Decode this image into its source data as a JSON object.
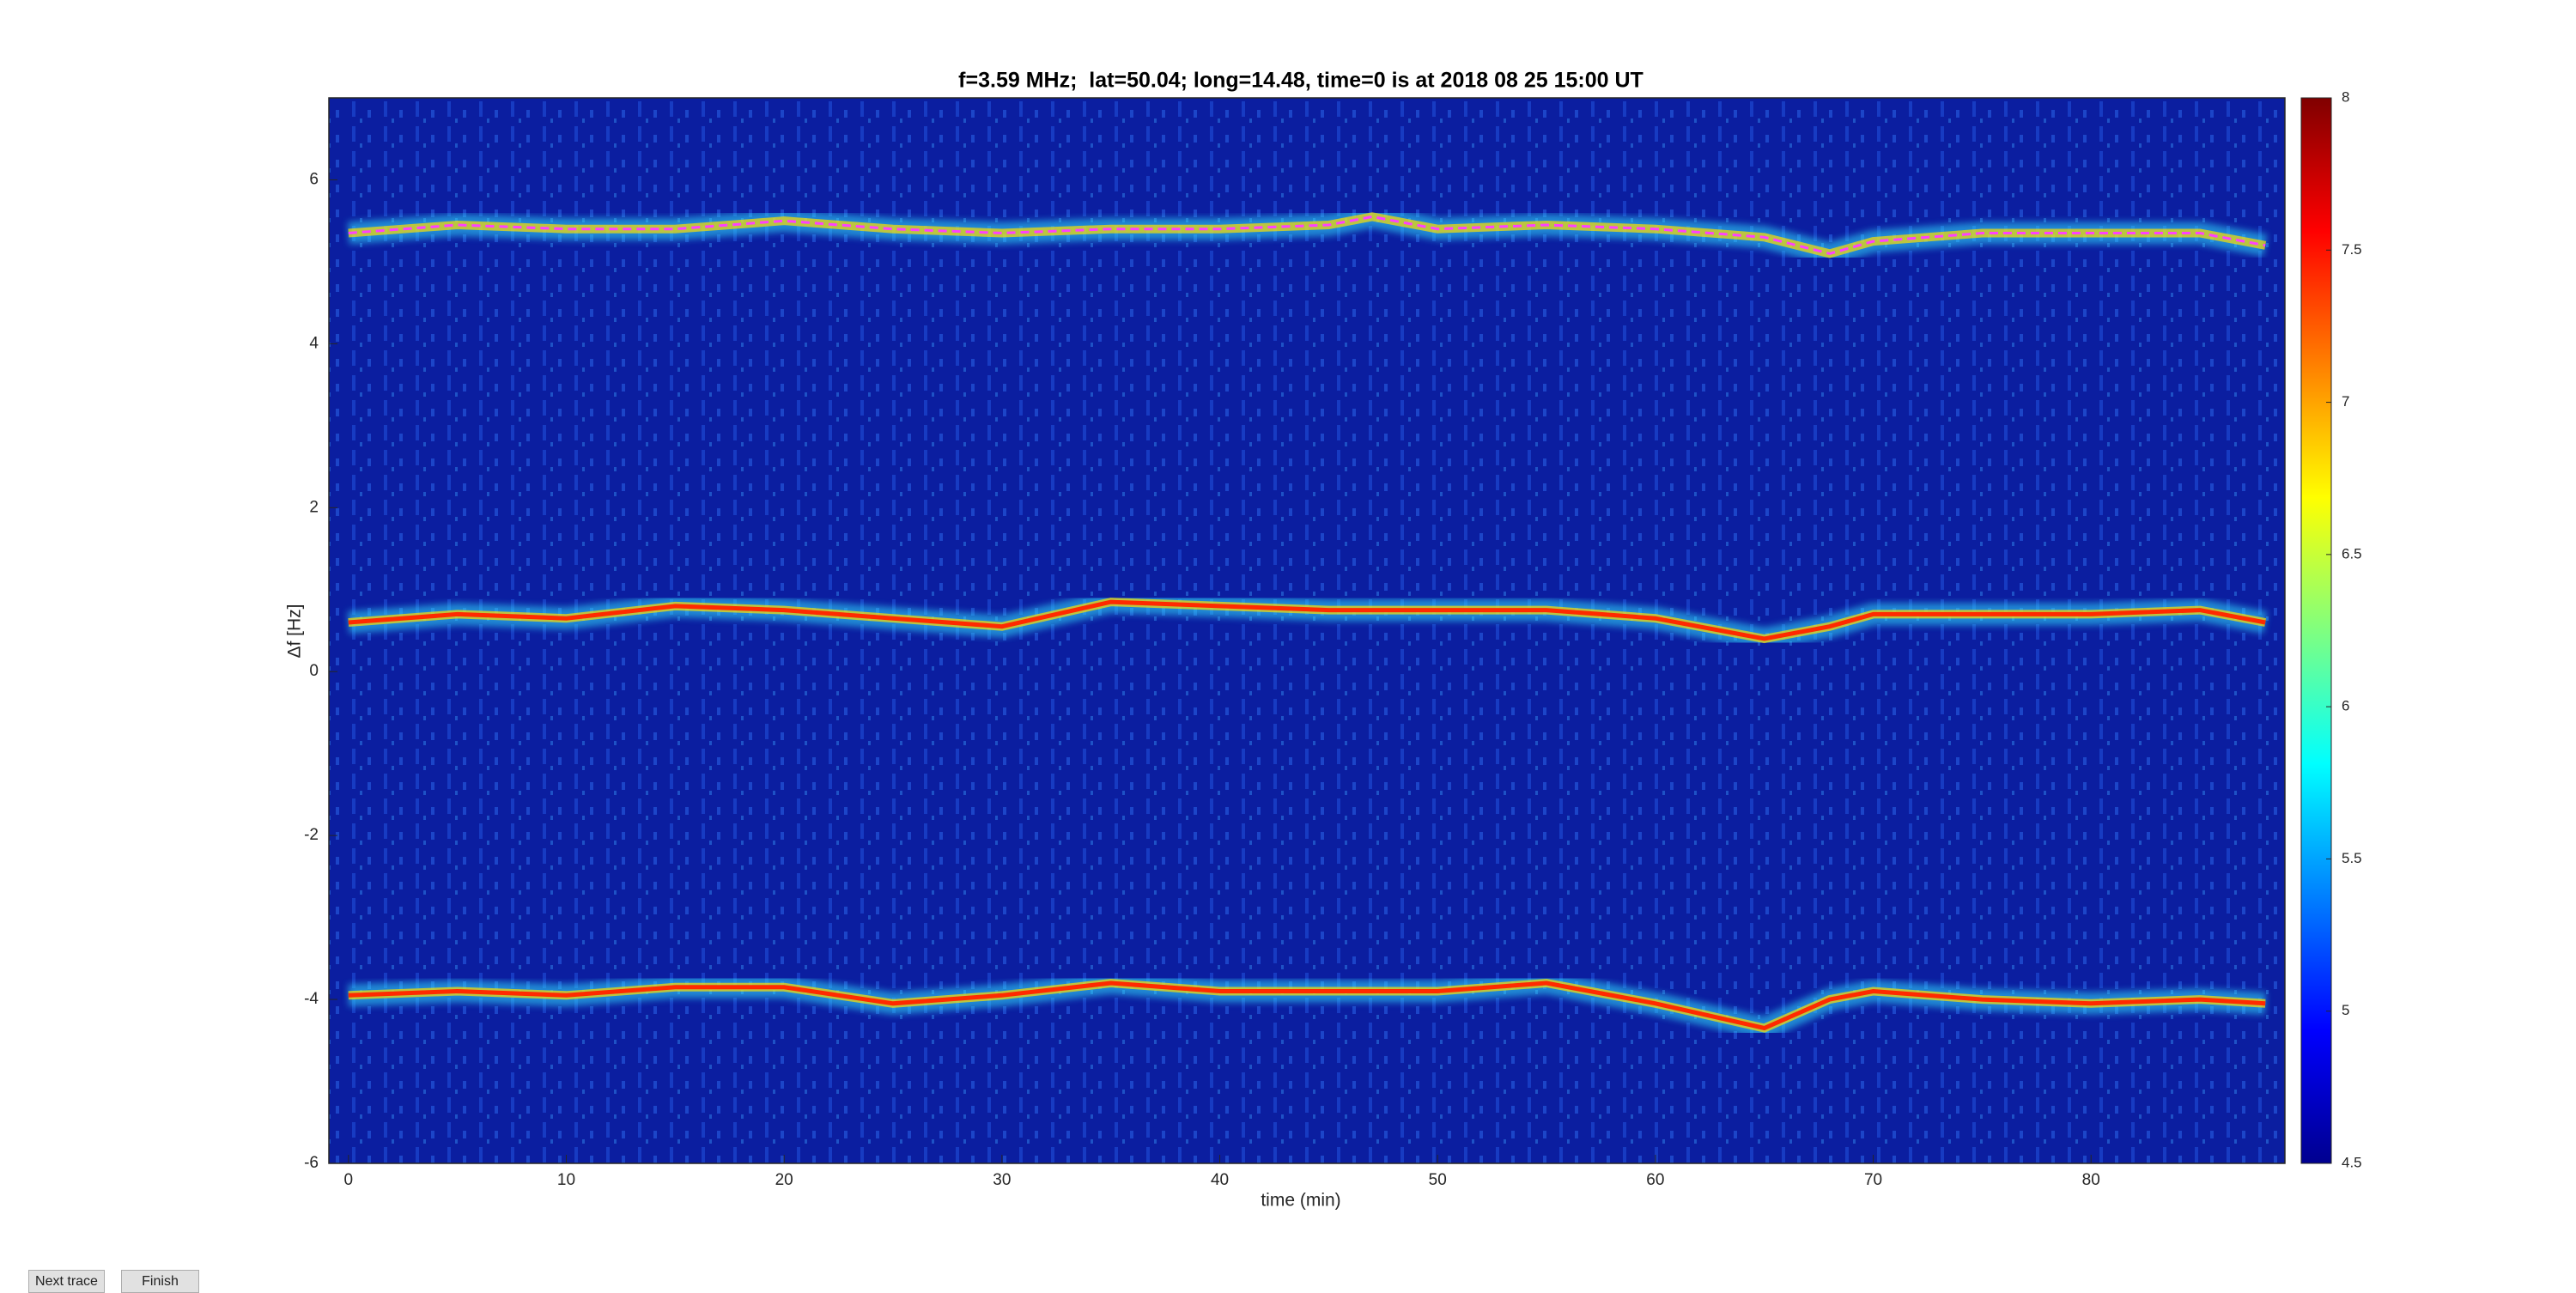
{
  "chart_data": {
    "type": "spectrogram",
    "title": "f=3.59 MHz;  lat=50.04; long=14.48, time=0 is at 2018 08 25 15:00 UT",
    "xlabel": "time (min)",
    "ylabel": "Δf [Hz]",
    "xlim": [
      -0.9,
      88.9
    ],
    "ylim": [
      -6,
      7
    ],
    "xticks": [
      0,
      10,
      20,
      30,
      40,
      50,
      60,
      70,
      80
    ],
    "yticks": [
      -6,
      -4,
      -2,
      0,
      2,
      4,
      6
    ],
    "background": "#0b1ea0",
    "x": [
      0,
      5,
      10,
      15,
      20,
      25,
      30,
      35,
      40,
      45,
      47,
      50,
      55,
      60,
      65,
      68,
      70,
      75,
      80,
      85,
      88
    ],
    "series": [
      {
        "color": "#ff40ff",
        "style": "dashed",
        "values": [
          5.35,
          5.45,
          5.4,
          5.4,
          5.5,
          5.4,
          5.35,
          5.4,
          5.4,
          5.45,
          5.55,
          5.4,
          5.45,
          5.4,
          5.3,
          5.1,
          5.25,
          5.35,
          5.35,
          5.35,
          5.2
        ]
      },
      {
        "color": "#ff2a00",
        "style": "solid",
        "values": [
          0.6,
          0.7,
          0.65,
          0.8,
          0.75,
          0.65,
          0.55,
          0.85,
          0.8,
          0.75,
          0.75,
          0.75,
          0.75,
          0.65,
          0.4,
          0.55,
          0.7,
          0.7,
          0.7,
          0.75,
          0.6
        ]
      },
      {
        "color": "#ff2a00",
        "style": "solid",
        "values": [
          -3.95,
          -3.9,
          -3.95,
          -3.85,
          -3.85,
          -4.05,
          -3.95,
          -3.8,
          -3.9,
          -3.9,
          -3.9,
          -3.9,
          -3.8,
          -4.05,
          -4.35,
          -4.0,
          -3.9,
          -4.0,
          -4.05,
          -4.0,
          -4.05
        ]
      }
    ],
    "colorbar": {
      "lim": [
        4.5,
        8
      ],
      "ticks": [
        4.5,
        5,
        5.5,
        6,
        6.5,
        7,
        7.5,
        8
      ],
      "colormap": "jet"
    }
  },
  "buttons": [
    "Next trace",
    "Finish"
  ]
}
